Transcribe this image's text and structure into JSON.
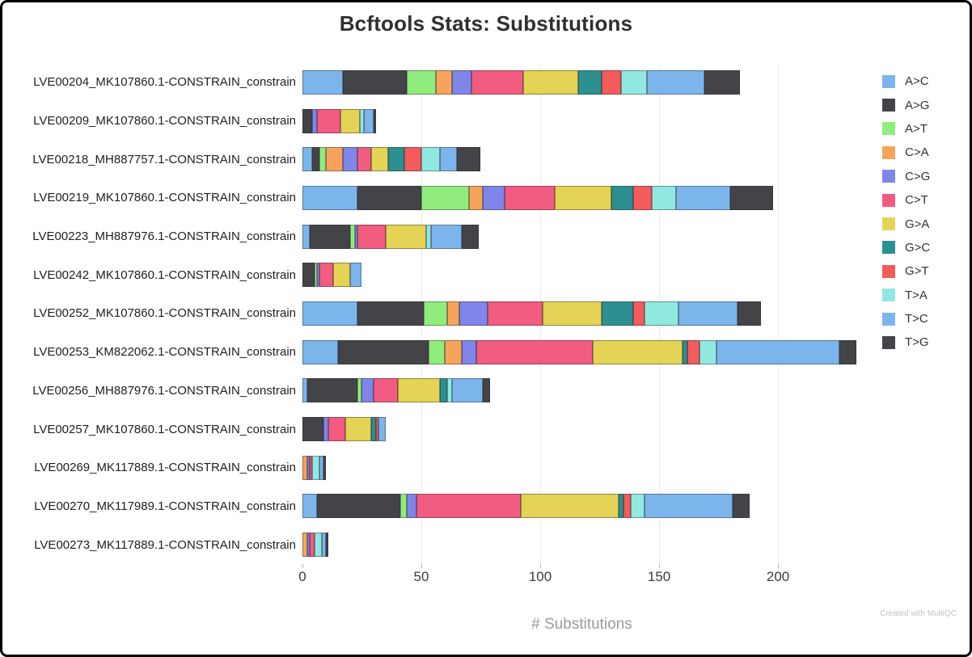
{
  "title": "Bcftools Stats: Substitutions",
  "xlabel": "# Substitutions",
  "watermark": "Created with MultiQC",
  "chart_data": {
    "type": "bar",
    "orientation": "horizontal",
    "stacked": true,
    "title": "Bcftools Stats: Substitutions",
    "xlabel": "# Substitutions",
    "ylabel": "",
    "xlim": [
      0,
      235
    ],
    "x_ticks": [
      0,
      50,
      100,
      150,
      200
    ],
    "grid": true,
    "legend_position": "right",
    "categories": [
      "LVE00204_MK107860.1-CONSTRAIN_constrain",
      "LVE00209_MK107860.1-CONSTRAIN_constrain",
      "LVE00218_MH887757.1-CONSTRAIN_constrain",
      "LVE00219_MK107860.1-CONSTRAIN_constrain",
      "LVE00223_MH887976.1-CONSTRAIN_constrain",
      "LVE00242_MK107860.1-CONSTRAIN_constrain",
      "LVE00252_MK107860.1-CONSTRAIN_constrain",
      "LVE00253_KM822062.1-CONSTRAIN_constrain",
      "LVE00256_MH887976.1-CONSTRAIN_constrain",
      "LVE00257_MK107860.1-CONSTRAIN_constrain",
      "LVE00269_MK117889.1-CONSTRAIN_constrain",
      "LVE00270_MK117989.1-CONSTRAIN_constrain",
      "LVE00273_MK117889.1-CONSTRAIN_constrain"
    ],
    "series": [
      {
        "name": "A>C",
        "color": "#7cb5ec",
        "values": [
          17,
          0,
          4,
          23,
          3,
          0,
          23,
          15,
          2,
          0,
          0,
          6,
          0
        ]
      },
      {
        "name": "A>G",
        "color": "#434348",
        "values": [
          27,
          4,
          3,
          27,
          17,
          5,
          28,
          38,
          21,
          9,
          0,
          35,
          0
        ]
      },
      {
        "name": "A>T",
        "color": "#90ed7d",
        "values": [
          12,
          0,
          3,
          20,
          2,
          1,
          10,
          7,
          2,
          0,
          0,
          3,
          0
        ]
      },
      {
        "name": "C>A",
        "color": "#f7a35c",
        "values": [
          7,
          0,
          7,
          6,
          0,
          0,
          5,
          7,
          0,
          0,
          2,
          0,
          2
        ]
      },
      {
        "name": "C>G",
        "color": "#8085e9",
        "values": [
          8,
          2,
          6,
          9,
          1,
          1,
          12,
          6,
          5,
          2,
          1,
          4,
          1
        ]
      },
      {
        "name": "C>T",
        "color": "#f15c80",
        "values": [
          22,
          10,
          6,
          21,
          12,
          6,
          23,
          49,
          10,
          7,
          1,
          44,
          2
        ]
      },
      {
        "name": "G>A",
        "color": "#e4d354",
        "values": [
          23,
          8,
          7,
          24,
          17,
          7,
          25,
          38,
          18,
          11,
          0,
          41,
          0
        ]
      },
      {
        "name": "G>C",
        "color": "#2b908f",
        "values": [
          10,
          0,
          7,
          9,
          0,
          0,
          13,
          2,
          3,
          2,
          0,
          2,
          0
        ]
      },
      {
        "name": "G>T",
        "color": "#f45b5b",
        "values": [
          8,
          0,
          7,
          8,
          0,
          0,
          5,
          5,
          0,
          1,
          0,
          3,
          0
        ]
      },
      {
        "name": "T>A",
        "color": "#91e8e1",
        "values": [
          11,
          2,
          8,
          10,
          2,
          0,
          14,
          7,
          2,
          0,
          3,
          6,
          3
        ]
      },
      {
        "name": "T>C",
        "color": "#7cb5ec",
        "values": [
          24,
          4,
          7,
          23,
          13,
          5,
          25,
          52,
          13,
          3,
          2,
          37,
          2
        ]
      },
      {
        "name": "T>G",
        "color": "#434348",
        "values": [
          15,
          1,
          10,
          18,
          7,
          0,
          10,
          7,
          3,
          0,
          1,
          7,
          1
        ]
      }
    ]
  }
}
